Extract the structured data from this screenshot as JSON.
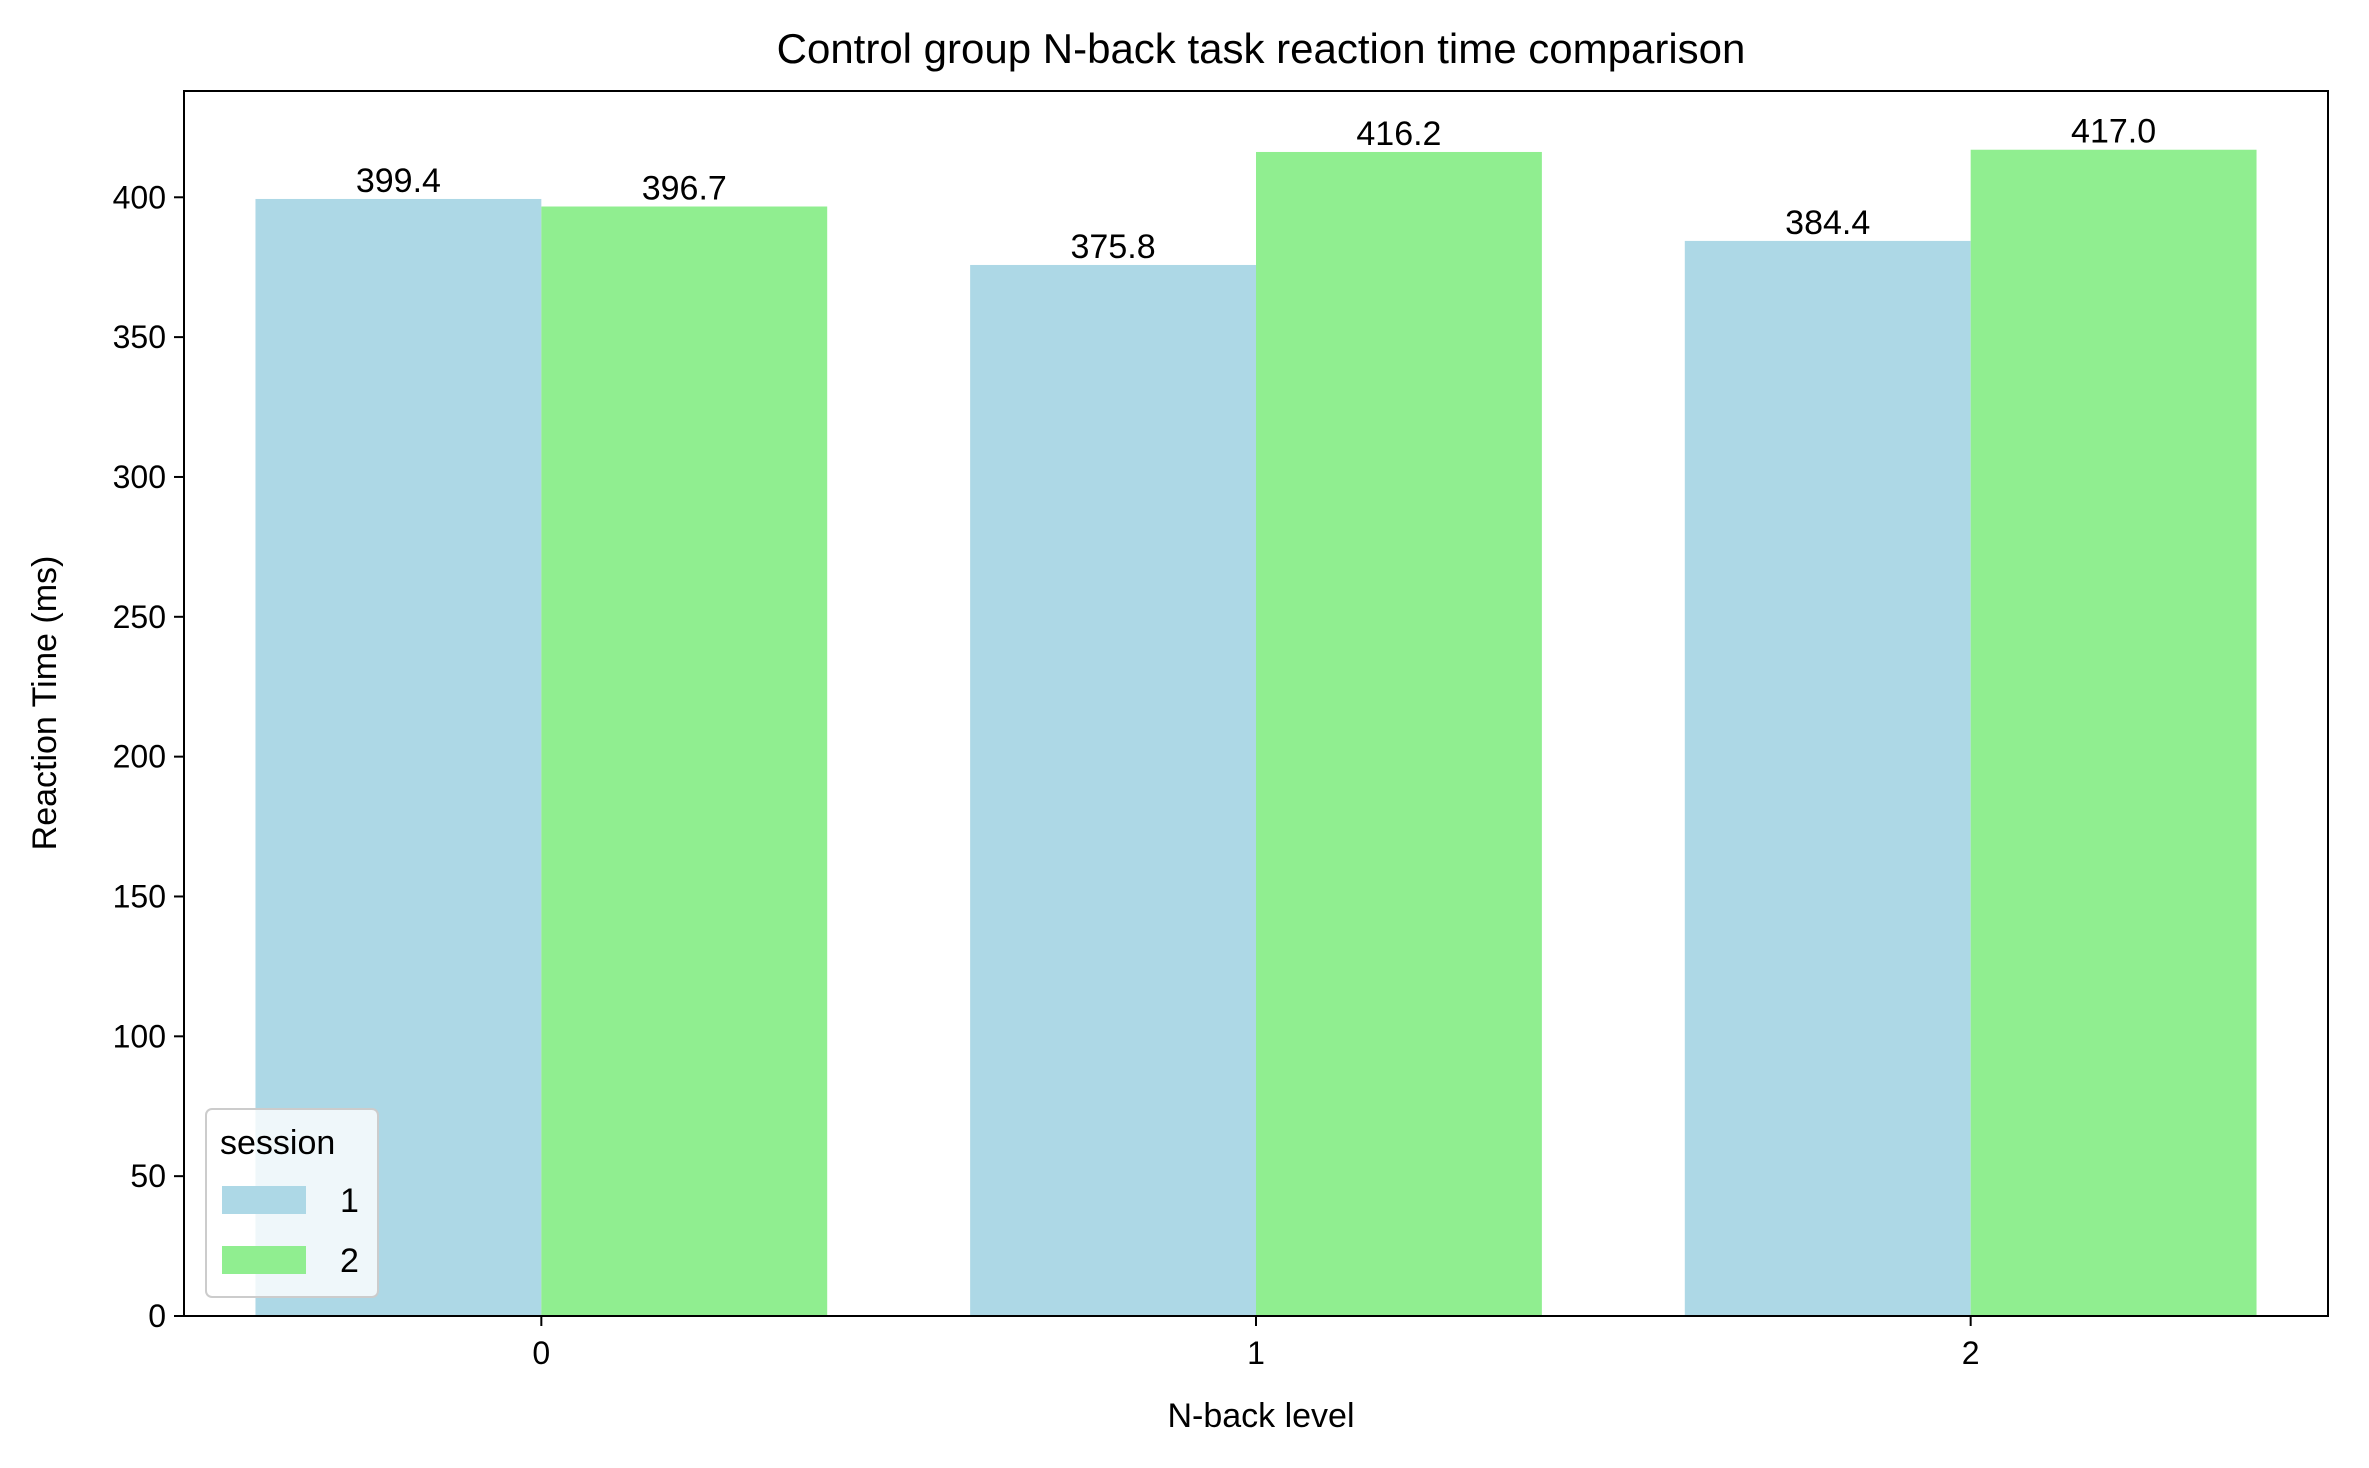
{
  "chart_data": {
    "type": "bar",
    "title": "Control group N-back task reaction time comparison",
    "xlabel": "N-back level",
    "ylabel": "Reaction Time (ms)",
    "categories": [
      "0",
      "1",
      "2"
    ],
    "series": [
      {
        "name": "1",
        "color": "#add8e6",
        "values": [
          399.4,
          375.8,
          384.4
        ],
        "labels": [
          "399.4",
          "375.8",
          "384.4"
        ]
      },
      {
        "name": "2",
        "color": "#90ee90",
        "values": [
          396.7,
          416.2,
          417.0
        ],
        "labels": [
          "396.7",
          "416.2",
          "417.0"
        ]
      }
    ],
    "ylim": [
      0,
      438
    ],
    "yticks": [
      0,
      50,
      100,
      150,
      200,
      250,
      300,
      350,
      400
    ],
    "grid": false,
    "legend": {
      "title": "session",
      "placement": "lower-left"
    }
  }
}
